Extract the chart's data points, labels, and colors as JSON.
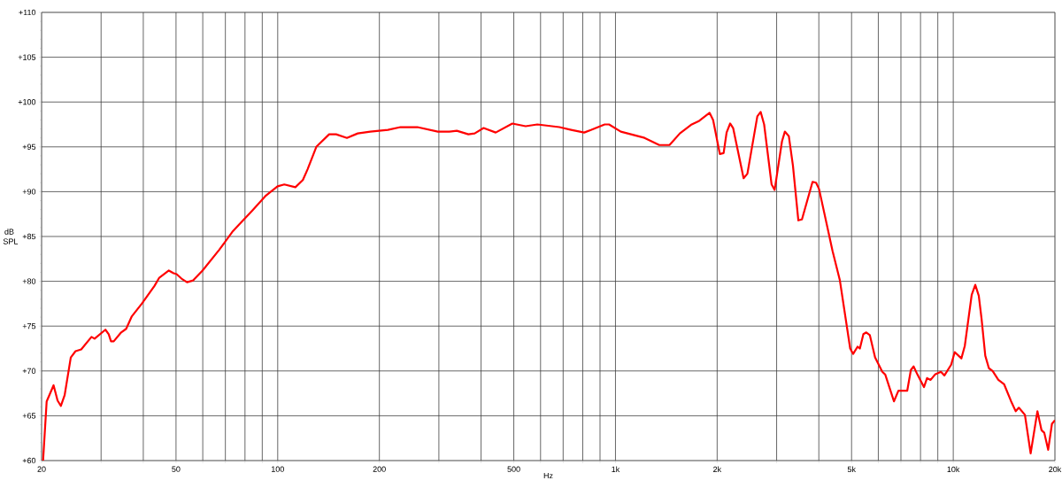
{
  "chart_data": {
    "type": "line",
    "xlabel": "Hz",
    "ylabel": "dB SPL",
    "log": "x",
    "grid": true,
    "xlim": [
      20,
      20000
    ],
    "ylim": [
      60,
      110
    ],
    "xticks": [
      20,
      {
        "value": 30,
        "label": null
      },
      {
        "value": 40,
        "label": null
      },
      50,
      {
        "value": 60,
        "label": null
      },
      {
        "value": 70,
        "label": null
      },
      {
        "value": 80,
        "label": null
      },
      {
        "value": 90,
        "label": null
      },
      100,
      200,
      {
        "value": 300,
        "label": null
      },
      {
        "value": 400,
        "label": null
      },
      500,
      {
        "value": 600,
        "label": null
      },
      {
        "value": 700,
        "label": null
      },
      {
        "value": 800,
        "label": null
      },
      {
        "value": 900,
        "label": null
      },
      {
        "value": 1000,
        "label": "1k"
      },
      {
        "value": 2000,
        "label": "2k"
      },
      {
        "value": 3000,
        "label": null
      },
      {
        "value": 4000,
        "label": null
      },
      {
        "value": 5000,
        "label": "5k"
      },
      {
        "value": 6000,
        "label": null
      },
      {
        "value": 7000,
        "label": null
      },
      {
        "value": 8000,
        "label": null
      },
      {
        "value": 9000,
        "label": null
      },
      {
        "value": 10000,
        "label": "10k"
      },
      {
        "value": 20000,
        "label": "20k"
      }
    ],
    "yticks": [
      {
        "value": 60,
        "label": "+60"
      },
      {
        "value": 65,
        "label": "+65"
      },
      {
        "value": 70,
        "label": "+70"
      },
      {
        "value": 75,
        "label": "+75"
      },
      {
        "value": 80,
        "label": "+80"
      },
      {
        "value": 85,
        "label": "+85"
      },
      {
        "value": 90,
        "label": "+90"
      },
      {
        "value": 95,
        "label": "+95"
      },
      {
        "value": 100,
        "label": "+100"
      },
      {
        "value": 105,
        "label": "+105"
      },
      {
        "value": 110,
        "label": "+110"
      }
    ],
    "x": [
      20.2,
      20.7,
      21.7,
      22.3,
      22.8,
      23.4,
      24.4,
      25.2,
      26.2,
      28.1,
      28.7,
      30.9,
      31.6,
      32.1,
      32.7,
      34.4,
      35.6,
      37.0,
      39.6,
      43.2,
      44.6,
      47.6,
      49.2,
      50.2,
      51.9,
      53.9,
      56.2,
      59.9,
      67.1,
      73.7,
      84.1,
      91.9,
      99.9,
      104.6,
      112.8,
      118.7,
      122.6,
      130.1,
      142,
      148.9,
      160.3,
      172.6,
      188,
      212,
      231,
      259,
      298,
      322,
      339,
      367,
      383,
      407,
      442,
      495,
      542,
      587,
      682,
      739,
      808,
      849,
      929,
      957,
      1037,
      1219,
      1348,
      1445,
      1551,
      1682,
      1770,
      1899,
      1946,
      2037,
      2090,
      2133,
      2185,
      2230,
      2395,
      2458,
      2630,
      2690,
      2755,
      2899,
      2960,
      3111,
      3173,
      3260,
      3353,
      3479,
      3565,
      3833,
      3925,
      4006,
      4391,
      4617,
      4953,
      5053,
      5207,
      5291,
      5419,
      5528,
      5662,
      5869,
      6165,
      6290,
      6677,
      6881,
      7309,
      7491,
      7633,
      7834,
      8190,
      8365,
      8571,
      8831,
      9191,
      9416,
      9859,
      10100,
      10570,
      10820,
      11340,
      11620,
      11900,
      12130,
      12440,
      12750,
      13080,
      13600,
      14150,
      14840,
      15310,
      15640,
      16300,
      16950,
      17750,
      18250,
      18600,
      19100,
      19600,
      20000
    ],
    "series": [
      {
        "color": "#ff0000",
        "values": [
          60,
          66.6,
          68.4,
          66.7,
          66.1,
          67.3,
          71.5,
          72.2,
          72.4,
          73.8,
          73.6,
          74.6,
          74.1,
          73.3,
          73.3,
          74.3,
          74.7,
          76.1,
          77.5,
          79.5,
          80.4,
          81.2,
          80.9,
          80.8,
          80.3,
          79.9,
          80.1,
          81.2,
          83.5,
          85.6,
          87.9,
          89.5,
          90.6,
          90.8,
          90.5,
          91.3,
          92.5,
          95.0,
          96.4,
          96.4,
          96.0,
          96.5,
          96.7,
          96.9,
          97.2,
          97.2,
          96.7,
          96.7,
          96.8,
          96.4,
          96.5,
          97.1,
          96.6,
          97.6,
          97.3,
          97.5,
          97.2,
          96.9,
          96.6,
          96.9,
          97.5,
          97.5,
          96.7,
          96.0,
          95.2,
          95.2,
          96.5,
          97.5,
          97.9,
          98.8,
          98.0,
          94.2,
          94.3,
          96.6,
          97.6,
          97.1,
          91.5,
          92.0,
          98.4,
          98.9,
          97.5,
          90.8,
          90.2,
          95.6,
          96.7,
          96.2,
          92.9,
          86.8,
          86.9,
          91.1,
          91.0,
          90.3,
          83.4,
          80.1,
          72.5,
          71.9,
          72.7,
          72.5,
          74.1,
          74.3,
          74.0,
          71.5,
          69.9,
          69.6,
          66.6,
          67.8,
          67.8,
          70.1,
          70.5,
          69.6,
          68.2,
          69.2,
          69.0,
          69.6,
          69.9,
          69.5,
          70.7,
          72.1,
          71.4,
          72.8,
          78.5,
          79.6,
          78.4,
          75.8,
          71.7,
          70.3,
          70.0,
          69.0,
          68.5,
          66.6,
          65.5,
          65.9,
          65.1,
          60.8,
          65.5,
          63.4,
          63.1,
          61.2,
          64.1,
          64.5
        ]
      }
    ]
  }
}
